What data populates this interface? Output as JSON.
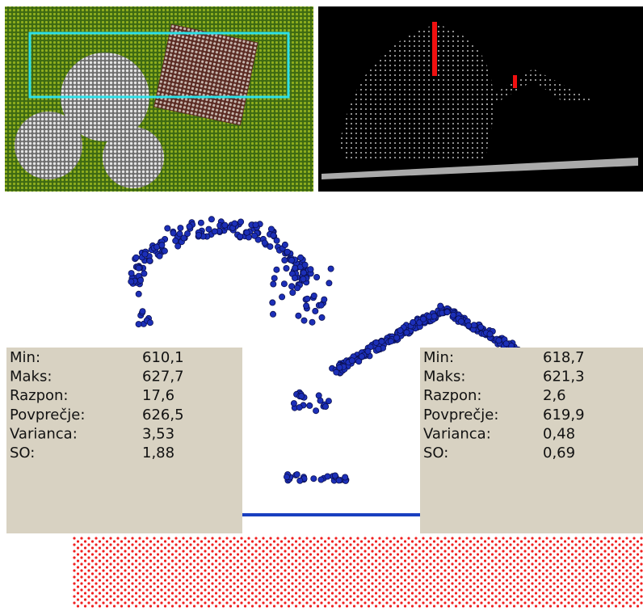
{
  "left_stats": {
    "rows": [
      {
        "label": "Min:",
        "value": "610,1"
      },
      {
        "label": "Maks:",
        "value": "627,7"
      },
      {
        "label": "Razpon:",
        "value": "17,6"
      },
      {
        "label": "Povprečje:",
        "value": "626,5"
      },
      {
        "label": "Varianca:",
        "value": "3,53"
      },
      {
        "label": "SO:",
        "value": "1,88"
      }
    ]
  },
  "right_stats": {
    "rows": [
      {
        "label": "Min:",
        "value": "618,7"
      },
      {
        "label": "Maks:",
        "value": "621,3"
      },
      {
        "label": "Razpon:",
        "value": "2,6"
      },
      {
        "label": "Povprečje:",
        "value": "619,9"
      },
      {
        "label": "Varianca:",
        "value": "0,48"
      },
      {
        "label": "SO:",
        "value": "0,69"
      }
    ]
  }
}
